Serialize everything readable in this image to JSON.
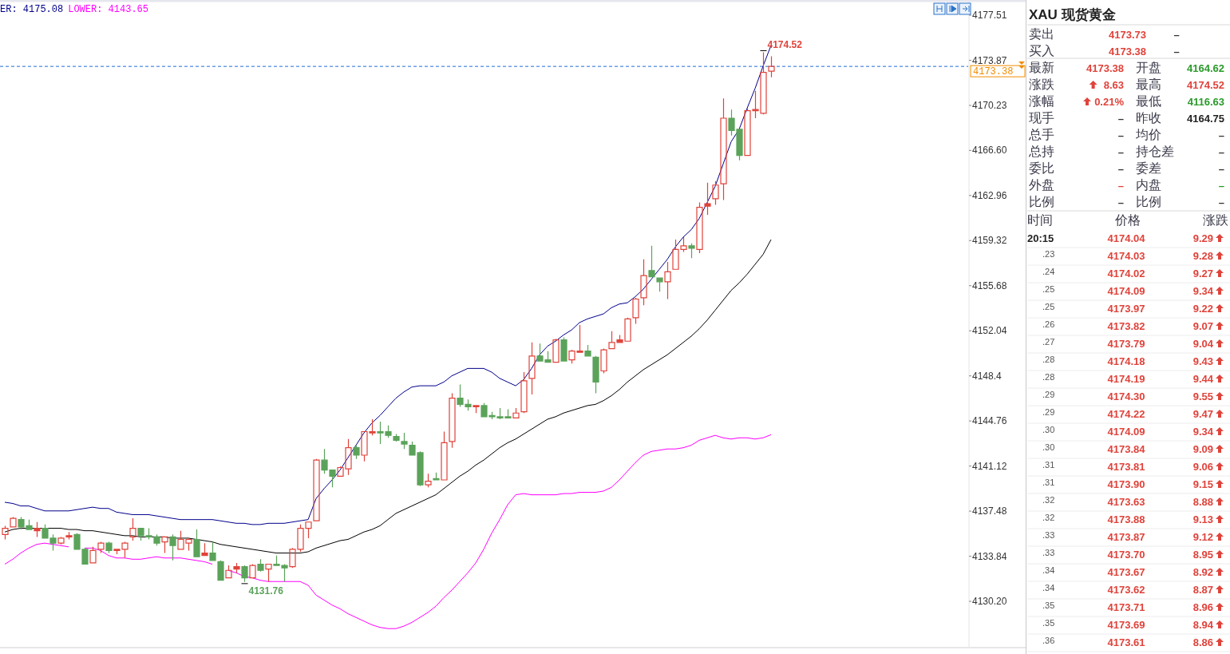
{
  "chart_data": [
    {
      "type": "candlestick",
      "categories": [
        null,
        null,
        null,
        null,
        null,
        null,
        null,
        null,
        null,
        null,
        null,
        null,
        null,
        null,
        null,
        null,
        null,
        null,
        null,
        null,
        null,
        null,
        null,
        null,
        null,
        null,
        null,
        null,
        null,
        null,
        null,
        null,
        null,
        null,
        null,
        null,
        null,
        null,
        null,
        null,
        null,
        null,
        null,
        null,
        null,
        null,
        null,
        null,
        null,
        null,
        null,
        null,
        null,
        null,
        null,
        null,
        null,
        null,
        null,
        null,
        null,
        null,
        null,
        null,
        null,
        null,
        null,
        null,
        null,
        null,
        null,
        null,
        null,
        null,
        null,
        null,
        null,
        null,
        null,
        null,
        null,
        null,
        null,
        null,
        null,
        null,
        null,
        null,
        null,
        null,
        null,
        null,
        null,
        null,
        null,
        null,
        null
      ],
      "ohlc": [
        [
          4135.6,
          4136.3,
          4135.2,
          4136.1
        ],
        [
          4136.2,
          4137.0,
          4136.2,
          4136.9
        ],
        [
          4136.8,
          4137.0,
          4136.0,
          4136.2
        ],
        [
          4136.3,
          4136.8,
          4136.0,
          4136.0
        ],
        [
          4135.9,
          4136.6,
          4135.4,
          4136.1
        ],
        [
          4136.1,
          4136.4,
          4135.3,
          4135.3
        ],
        [
          4135.3,
          4135.6,
          4134.3,
          4134.9
        ],
        [
          4134.9,
          4135.4,
          4134.8,
          4135.3
        ],
        [
          4135.4,
          4135.8,
          4135.2,
          4135.5
        ],
        [
          4135.6,
          4135.7,
          4134.4,
          4134.4
        ],
        [
          4134.4,
          4134.5,
          4133.2,
          4133.2
        ],
        [
          4133.3,
          4134.6,
          4133.3,
          4134.3
        ],
        [
          4134.4,
          4135.0,
          4134.1,
          4134.9
        ],
        [
          4134.9,
          4135.0,
          4134.1,
          4134.3
        ],
        [
          4134.3,
          4134.4,
          4134.0,
          4134.4
        ],
        [
          4134.4,
          4135.0,
          4133.7,
          4134.9
        ],
        [
          4135.4,
          4136.9,
          4135.1,
          4136.1
        ],
        [
          4136.1,
          4136.1,
          4135.1,
          4135.5
        ],
        [
          4135.5,
          4136.1,
          4135.2,
          4135.4
        ],
        [
          4135.4,
          4135.6,
          4134.7,
          4134.9
        ],
        [
          4135.0,
          4135.4,
          4134.1,
          4135.4
        ],
        [
          4135.4,
          4135.6,
          4133.5,
          4134.7
        ],
        [
          4134.4,
          4135.9,
          4134.4,
          4135.2
        ],
        [
          4134.9,
          4135.3,
          4134.3,
          4135.2
        ],
        [
          4135.2,
          4136.0,
          4133.8,
          4133.8
        ],
        [
          4133.9,
          4134.9,
          4133.9,
          4134.1
        ],
        [
          4134.1,
          4135.0,
          4133.5,
          4133.5
        ],
        [
          4133.4,
          4133.5,
          4131.9,
          4131.9
        ],
        [
          4132.1,
          4133.1,
          4132.1,
          4132.7
        ],
        [
          4132.8,
          4133.3,
          4132.5,
          4133.0
        ],
        [
          4133.0,
          4133.1,
          4131.76,
          4132.1
        ],
        [
          4132.1,
          4133.2,
          4132.1,
          4133.1
        ],
        [
          4133.2,
          4133.6,
          4132.6,
          4132.7
        ],
        [
          4132.8,
          4133.2,
          4131.8,
          4133.2
        ],
        [
          4133.2,
          4133.9,
          4133.1,
          4133.1
        ],
        [
          4133.1,
          4133.2,
          4131.8,
          4132.9
        ],
        [
          4133.0,
          4134.5,
          4132.9,
          4134.4
        ],
        [
          4134.4,
          4136.4,
          4134.2,
          4136.1
        ],
        [
          4136.1,
          4136.6,
          4135.3,
          4136.6
        ],
        [
          4136.7,
          4141.7,
          4136.7,
          4141.6
        ],
        [
          4141.6,
          4142.5,
          4140.5,
          4140.8
        ],
        [
          4140.8,
          4140.8,
          4139.4,
          4140.3
        ],
        [
          4140.3,
          4141.1,
          4140.3,
          4141.0
        ],
        [
          4140.9,
          4143.3,
          4140.4,
          4142.6
        ],
        [
          4142.6,
          4142.8,
          4141.7,
          4142.0
        ],
        [
          4142.0,
          4143.9,
          4141.5,
          4143.9
        ],
        [
          4143.8,
          4144.9,
          4143.6,
          4143.9
        ],
        [
          4143.9,
          4144.7,
          4142.9,
          4143.8
        ],
        [
          4143.9,
          4144.4,
          4143.4,
          4143.6
        ],
        [
          4143.5,
          4143.7,
          4143.1,
          4143.2
        ],
        [
          4143.1,
          4143.8,
          4142.5,
          4142.9
        ],
        [
          4142.8,
          4143.1,
          4142.0,
          4142.0
        ],
        [
          4142.2,
          4142.3,
          4139.5,
          4139.6
        ],
        [
          4139.6,
          4140.5,
          4139.4,
          4139.9
        ],
        [
          4140.1,
          4140.6,
          4140.0,
          4140.0
        ],
        [
          4140.0,
          4143.9,
          4140.0,
          4143.0
        ],
        [
          4143.1,
          4147.0,
          4142.6,
          4146.6
        ],
        [
          4146.6,
          4147.7,
          4145.9,
          4146.1
        ],
        [
          4146.1,
          4146.5,
          4145.6,
          4145.9
        ],
        [
          4145.9,
          4146.0,
          4145.4,
          4146.0
        ],
        [
          4146.0,
          4146.2,
          4145.1,
          4145.1
        ],
        [
          4145.2,
          4145.5,
          4144.9,
          4145.1
        ],
        [
          4145.1,
          4145.8,
          4144.9,
          4145.0
        ],
        [
          4145.1,
          4145.7,
          4145.0,
          4145.0
        ],
        [
          4145.0,
          4145.8,
          4145.0,
          4145.4
        ],
        [
          4145.5,
          4148.7,
          4145.4,
          4148.0
        ],
        [
          4148.2,
          4151.1,
          4146.9,
          4150.0
        ],
        [
          4150.0,
          4151.0,
          4149.6,
          4149.6
        ],
        [
          4149.7,
          4150.4,
          4149.5,
          4149.5
        ],
        [
          4149.5,
          4151.4,
          4149.5,
          4151.3
        ],
        [
          4151.3,
          4151.5,
          4149.6,
          4149.6
        ],
        [
          4149.7,
          4150.5,
          4149.4,
          4150.4
        ],
        [
          4150.3,
          4152.5,
          4150.3,
          4150.4
        ],
        [
          4150.4,
          4150.9,
          4150.0,
          4150.0
        ],
        [
          4149.9,
          4150.0,
          4147.0,
          4147.9
        ],
        [
          4148.8,
          4150.6,
          4148.6,
          4150.5
        ],
        [
          4150.6,
          4152.0,
          4150.6,
          4151.1
        ],
        [
          4151.1,
          4151.7,
          4151.1,
          4151.3
        ],
        [
          4151.2,
          4153.1,
          4151.2,
          4153.0
        ],
        [
          4153.1,
          4154.7,
          4152.6,
          4154.6
        ],
        [
          4154.7,
          4157.8,
          4154.1,
          4156.5
        ],
        [
          4156.9,
          4158.9,
          4156.4,
          4156.4
        ],
        [
          4156.3,
          4156.3,
          4155.2,
          4156.0
        ],
        [
          4156.0,
          4157.6,
          4154.6,
          4156.8
        ],
        [
          4157.0,
          4159.4,
          4157.0,
          4158.6
        ],
        [
          4158.6,
          4159.6,
          4158.4,
          4158.9
        ],
        [
          4158.9,
          4159.1,
          4157.9,
          4158.7
        ],
        [
          4158.6,
          4162.4,
          4158.3,
          4162.0
        ],
        [
          4162.1,
          4164.0,
          4161.4,
          4162.3
        ],
        [
          4162.7,
          4164.1,
          4162.2,
          4163.8
        ],
        [
          4163.9,
          4170.8,
          4162.6,
          4169.2
        ],
        [
          4169.2,
          4169.9,
          4167.8,
          4168.2
        ],
        [
          4168.3,
          4168.3,
          4165.8,
          4166.2
        ],
        [
          4166.2,
          4170.0,
          4166.2,
          4169.8
        ],
        [
          4169.8,
          4171.4,
          4169.2,
          4169.9
        ],
        [
          4169.6,
          4174.52,
          4169.5,
          4172.9
        ],
        [
          4173.0,
          4174.2,
          4172.5,
          4173.38
        ]
      ],
      "series": [
        {
          "type": "line",
          "color": "#00008b",
          "values": [
            4138.2,
            4138.1,
            4137.9,
            4137.9,
            4137.7,
            4137.5,
            4137.5,
            4137.5,
            4137.5,
            4137.6,
            4137.7,
            4137.8,
            4137.7,
            4137.7,
            4137.4,
            4137.3,
            4137.2,
            4137.2,
            4137.2,
            4137.1,
            4137.0,
            4136.9,
            4136.8,
            4136.8,
            4136.8,
            4136.8,
            4136.8,
            4136.7,
            4136.6,
            4136.5,
            4136.5,
            4136.4,
            4136.4,
            4136.5,
            4136.5,
            4136.5,
            4136.6,
            4136.7,
            4136.8,
            4138.5,
            4139.3,
            4140.0,
            4140.8,
            4141.8,
            4142.8,
            4143.8,
            4144.6,
            4145.2,
            4145.9,
            4146.6,
            4147.1,
            4147.5,
            4147.6,
            4147.6,
            4147.6,
            4147.9,
            4148.4,
            4148.7,
            4149.0,
            4149.0,
            4149.0,
            4148.7,
            4148.2,
            4147.9,
            4147.6,
            4148.1,
            4149.0,
            4150.1,
            4150.8,
            4151.2,
            4151.7,
            4152.1,
            4152.7,
            4153.0,
            4153.2,
            4153.4,
            4153.9,
            4154.2,
            4154.3,
            4154.8,
            4155.4,
            4156.2,
            4157.0,
            4157.8,
            4158.8,
            4159.6,
            4160.2,
            4161.1,
            4162.4,
            4163.7,
            4165.5,
            4167.3,
            4168.3,
            4170.0,
            4171.6,
            4173.4,
            4175.08
          ]
        },
        {
          "type": "line",
          "color": "#000000",
          "values": [
            4135.8,
            4136.0,
            4136.1,
            4136.1,
            4136.1,
            4136.1,
            4136.1,
            4136.1,
            4136.0,
            4136.0,
            4135.9,
            4135.9,
            4135.8,
            4135.7,
            4135.6,
            4135.5,
            4135.5,
            4135.4,
            4135.4,
            4135.4,
            4135.4,
            4135.3,
            4135.3,
            4135.3,
            4135.2,
            4135.1,
            4135.0,
            4134.8,
            4134.7,
            4134.6,
            4134.5,
            4134.4,
            4134.3,
            4134.2,
            4134.1,
            4134.1,
            4134.1,
            4134.1,
            4134.2,
            4134.5,
            4134.7,
            4134.9,
            4135.1,
            4135.2,
            4135.5,
            4135.8,
            4136.0,
            4136.3,
            4136.8,
            4137.3,
            4137.6,
            4137.9,
            4138.2,
            4138.5,
            4138.8,
            4139.3,
            4139.8,
            4140.3,
            4140.7,
            4141.2,
            4141.6,
            4142.1,
            4142.6,
            4143.0,
            4143.3,
            4143.7,
            4144.1,
            4144.5,
            4144.9,
            4145.1,
            4145.4,
            4145.6,
            4145.8,
            4146.0,
            4146.1,
            4146.4,
            4146.8,
            4147.3,
            4147.9,
            4148.4,
            4148.9,
            4149.3,
            4149.7,
            4150.1,
            4150.6,
            4151.1,
            4151.6,
            4152.2,
            4152.9,
            4153.7,
            4154.5,
            4155.3,
            4155.9,
            4156.6,
            4157.4,
            4158.2,
            4159.4
          ]
        },
        {
          "type": "line",
          "color": "#ff00ff",
          "values": [
            4133.2,
            4133.6,
            4134.1,
            4134.5,
            4134.8,
            4134.9,
            4134.8,
            4134.7,
            4134.6,
            null,
            4134.5,
            4134.5,
            4134.3,
            4133.9,
            4133.7,
            4133.7,
            4133.6,
            4133.6,
            4133.7,
            4133.8,
            4133.7,
            4133.7,
            4133.7,
            4133.6,
            4133.5,
            4133.4,
            4133.2,
            null,
            4132.7,
            4132.5,
            4132.2,
            4132.1,
            4131.9,
            4131.8,
            4131.8,
            4131.8,
            4131.8,
            4131.8,
            4131.5,
            4130.7,
            4130.3,
            4129.9,
            4129.6,
            4129.2,
            4128.9,
            4128.6,
            4128.3,
            4128.1,
            4128.0,
            4128.0,
            4128.2,
            4128.5,
            4128.9,
            4129.3,
            4129.8,
            4130.5,
            4131.1,
            4131.8,
            4132.5,
            4133.3,
            4134.4,
            4135.7,
            4136.8,
            4138.0,
            4138.8,
            4138.9,
            4138.8,
            4138.8,
            4138.8,
            4138.8,
            4138.9,
            4138.9,
            4139.0,
            4139.0,
            4139.0,
            4139.1,
            4139.4,
            4140.0,
            4140.7,
            4141.4,
            4142.0,
            4142.3,
            4142.4,
            4142.5,
            4142.5,
            4142.6,
            4142.8,
            4143.2,
            4143.4,
            4143.6,
            4143.4,
            4143.3,
            4143.4,
            4143.4,
            4143.3,
            4143.4,
            4143.65
          ]
        }
      ],
      "ylim": [
        4126.53,
        4178.61
      ],
      "yticks": [
        4177.51,
        4173.87,
        4170.23,
        {
          "value": 4166.6,
          "label": "4166.60"
        },
        4162.96,
        4159.32,
        4155.68,
        4152.04,
        4148.4,
        {
          "value": 4144.76,
          "label": "4144.76"
        },
        4141.12,
        4137.48,
        4133.84,
        {
          "value": 4130.2,
          "label": "4130.20"
        }
      ],
      "tick_labels": "y",
      "ref_lines": [
        {
          "axis": "y",
          "value": 4173.38,
          "label": "4173.38",
          "color": "#1e6fd9",
          "line_style": "dashed"
        }
      ],
      "annotations": [
        "ER: 4175.08",
        "LOWER: 4143.65",
        "4174.52",
        "4131.76"
      ]
    },
    {
      "type": "other",
      "title": "XAU 现货黄金",
      "annotations": [
        "卖出",
        "4173.73",
        "–",
        "买入",
        "4173.38",
        "–",
        "最新",
        "4173.38",
        "开盘",
        "4164.62",
        "涨跌",
        "8.63",
        "最高",
        "4174.52",
        "涨幅",
        "0.21%",
        "最低",
        "4116.63",
        "现手",
        "–",
        "昨收",
        "4164.75",
        "总手",
        "–",
        "均价",
        "–",
        "总持",
        "–",
        "持仓差",
        "–",
        "委比",
        "–",
        "委差",
        "–",
        "外盘",
        "–",
        "内盘",
        "–",
        "比例",
        "–",
        "比例",
        "–",
        "时间",
        "价格",
        "涨跌",
        "20:15",
        "4174.04",
        "9.29",
        ".23",
        "4174.03",
        "9.28",
        ".24",
        "4174.02",
        "9.27",
        ".25",
        "4174.09",
        "9.34",
        ".25",
        "4173.97",
        "9.22",
        ".26",
        "4173.82",
        "9.07",
        ".27",
        "4173.79",
        "9.04",
        ".28",
        "4174.18",
        "9.43",
        ".28",
        "4174.19",
        "9.44",
        ".29",
        "4174.30",
        "9.55",
        ".29",
        "4174.22",
        "9.47",
        ".30",
        "4174.09",
        "9.34",
        ".30",
        "4173.84",
        "9.09",
        ".31",
        "4173.81",
        "9.06",
        ".31",
        "4173.90",
        "9.15",
        ".32",
        "4173.63",
        "8.88",
        ".32",
        "4173.88",
        "9.13",
        ".33",
        "4173.87",
        "9.12",
        ".33",
        "4173.70",
        "8.95",
        ".34",
        "4173.67",
        "8.92",
        ".34",
        "4173.62",
        "8.87",
        ".35",
        "4173.71",
        "8.96",
        ".35",
        "4173.69",
        "8.94",
        ".36",
        "4173.61",
        "8.86"
      ]
    }
  ]
}
